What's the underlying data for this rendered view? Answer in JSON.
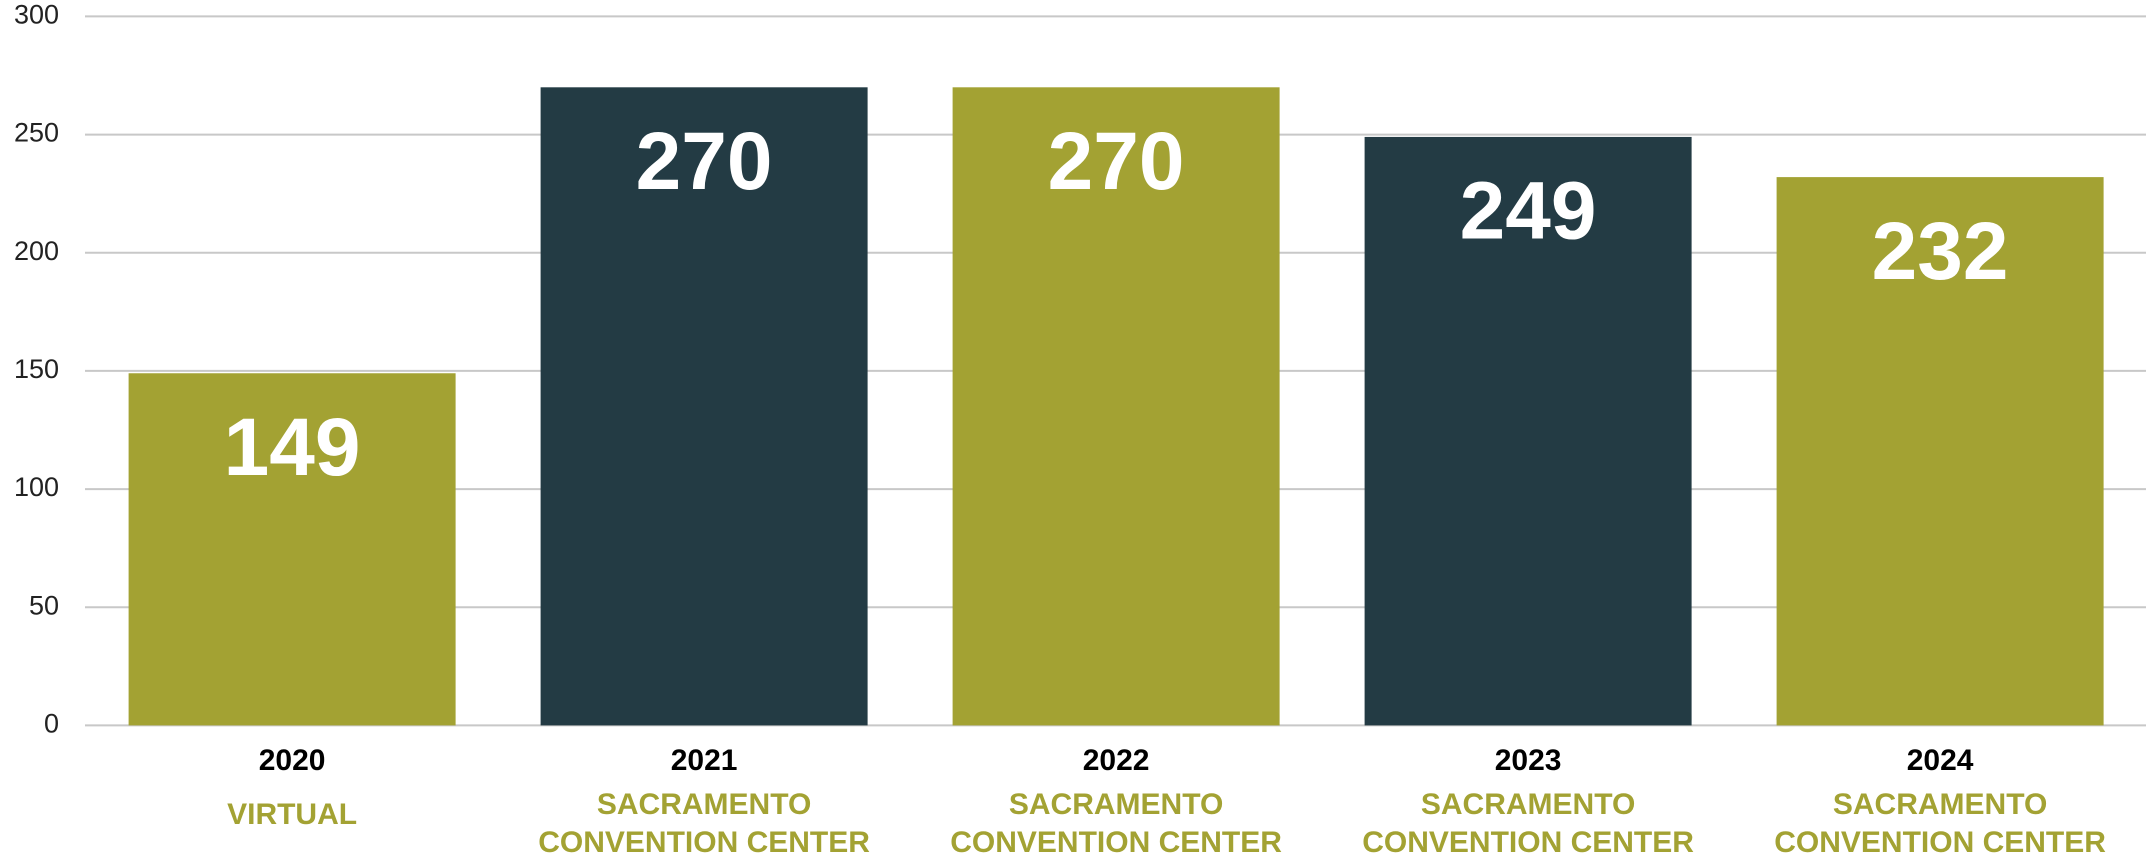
{
  "chart_data": {
    "type": "bar",
    "categories": [
      "2020",
      "2021",
      "2022",
      "2023",
      "2024"
    ],
    "venues": [
      [
        "VIRTUAL"
      ],
      [
        "SACRAMENTO",
        "CONVENTION CENTER"
      ],
      [
        "SACRAMENTO",
        "CONVENTION CENTER"
      ],
      [
        "SACRAMENTO",
        "CONVENTION CENTER"
      ],
      [
        "SACRAMENTO",
        "CONVENTION CENTER"
      ]
    ],
    "values": [
      149,
      270,
      270,
      249,
      232
    ],
    "colors": [
      "#a3a233",
      "#233b44",
      "#a3a233",
      "#233b44",
      "#a3a233"
    ],
    "venue_color": "#a3a233",
    "ylim": [
      0,
      300
    ],
    "yticks": [
      0,
      50,
      100,
      150,
      200,
      250,
      300
    ],
    "grid": true
  }
}
